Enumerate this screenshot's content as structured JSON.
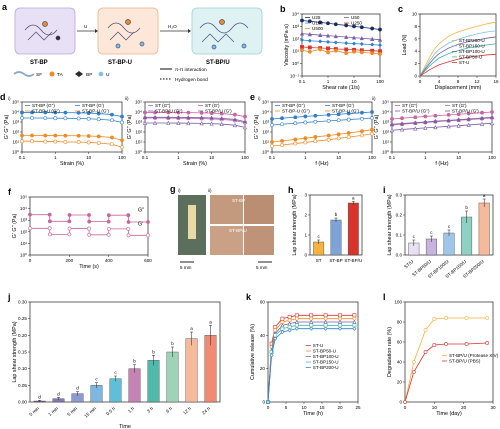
{
  "colors": {
    "purple": "#7b5ea7",
    "blue": "#2f7fd0",
    "teal": "#3fb6a8",
    "orange": "#f08a24",
    "red": "#d8342c",
    "navy": "#1b2a6b",
    "pink": "#c9669c",
    "gold": "#f4b33f",
    "peach": "#f7b99b",
    "skyblue": "#7ec0e8"
  },
  "panel_a": {
    "label": "a",
    "boxes": [
      "ST-BP",
      "ST-BP-U",
      "ST-BP/U"
    ],
    "arrow1": "U",
    "arrow2": "H₂O",
    "legend": [
      "SF",
      "TA",
      "BP",
      "U",
      "π-π interaction",
      "Hydrogen bond"
    ]
  },
  "panel_g": {
    "label": "g",
    "sub_i": "i)",
    "sub_ii": "ii)",
    "tag1": "ST-BP",
    "tag2": "ST-BP/U",
    "scale1": "5 mm",
    "scale2": "5 mm"
  },
  "chart_data": [
    {
      "id": "b",
      "type": "line",
      "xscale": "log",
      "yscale": "log",
      "xlabel": "Shear rate (1/s)",
      "ylabel": "Viscosity (mPa·s)",
      "xlim": [
        0.1,
        100
      ],
      "ylim": [
        0.1,
        10000
      ],
      "xticks": [
        "0.1",
        "1",
        "10",
        "100"
      ],
      "yticks": [
        "10⁻¹",
        "10⁰",
        "10¹",
        "10²",
        "10³",
        "10⁴"
      ],
      "x": [
        0.1,
        0.2,
        0.5,
        1,
        2,
        5,
        10,
        20,
        50,
        100
      ],
      "series": [
        {
          "name": "U25",
          "color": "#1b2a6b",
          "marker": "circle",
          "values": [
            3000,
            2600,
            2100,
            1800,
            1500,
            1200,
            1000,
            850,
            680,
            560
          ]
        },
        {
          "name": "U50",
          "color": "#7b5ea7",
          "marker": "triangle",
          "values": [
            260,
            230,
            200,
            180,
            160,
            140,
            125,
            110,
            95,
            85
          ]
        },
        {
          "name": "U100",
          "color": "#2f7fd0",
          "marker": "diamond",
          "values": [
            80,
            70,
            62,
            56,
            50,
            45,
            41,
            38,
            34,
            31
          ]
        },
        {
          "name": "U250",
          "color": "#d8342c",
          "marker": "square",
          "values": [
            22,
            20,
            18,
            17,
            15,
            14,
            13,
            12,
            11,
            10
          ]
        },
        {
          "name": "U500",
          "color": "#f08a24",
          "marker": "circle",
          "values": [
            12,
            9,
            14,
            8,
            11,
            7,
            9,
            8,
            7,
            6
          ]
        }
      ]
    },
    {
      "id": "c",
      "type": "line",
      "xlabel": "Displacement (mm)",
      "ylabel": "Load (N)",
      "xlim": [
        0,
        16
      ],
      "ylim": [
        0,
        10
      ],
      "xticks": [
        "0",
        "4",
        "8",
        "12",
        "16"
      ],
      "yticks": [
        "0",
        "2",
        "4",
        "6",
        "8",
        "10"
      ],
      "x": [
        0,
        1,
        2,
        3,
        4,
        6,
        8,
        10,
        12,
        14,
        16
      ],
      "series": [
        {
          "name": "ST-BP200-U",
          "color": "#f4b33f",
          "values": [
            0,
            1.5,
            3,
            4.3,
            5.2,
            6.4,
            7.1,
            7.6,
            8.0,
            8.4,
            8.7
          ]
        },
        {
          "name": "ST-BP150-U",
          "color": "#7ec0e8",
          "values": [
            0,
            1.2,
            2.4,
            3.5,
            4.3,
            5.3,
            5.9,
            6.4,
            6.8,
            7.1,
            7.3
          ]
        },
        {
          "name": "ST-BP100-U",
          "color": "#7b5ea7",
          "values": [
            0,
            1.0,
            2.0,
            2.9,
            3.6,
            4.5,
            5.1,
            5.5,
            5.8,
            6.1,
            6.3
          ]
        },
        {
          "name": "ST-BP50-U",
          "color": "#3fb6a8",
          "values": [
            0,
            0.8,
            1.6,
            2.3,
            2.9,
            3.6,
            4.1,
            4.5,
            4.8,
            5.0,
            5.2
          ]
        },
        {
          "name": "ST-U",
          "color": "#d8342c",
          "values": [
            0,
            0.5,
            1.0,
            1.4,
            1.8,
            2.3,
            2.7,
            3.0,
            3.2,
            3.4,
            3.5
          ]
        }
      ]
    },
    {
      "id": "di",
      "type": "line",
      "xscale": "log",
      "yscale": "log",
      "xlabel": "Strain (%)",
      "ylabel": "G' G'' (Pa)",
      "xlim": [
        0.1,
        100
      ],
      "ylim": [
        1,
        100000
      ],
      "xticks": [
        "0.1",
        "1",
        "10",
        "100"
      ],
      "yticks": [
        "10⁰",
        "10¹",
        "10²",
        "10³",
        "10⁴",
        "10⁵"
      ],
      "x": [
        0.1,
        0.2,
        0.5,
        1,
        2,
        5,
        10,
        20,
        50,
        100
      ],
      "series": [
        {
          "name": "ST-BP (G'')",
          "color": "#2f7fd0",
          "marker": "circle",
          "values": [
            9000,
            9000,
            8900,
            8800,
            8600,
            8300,
            7800,
            7000,
            5500,
            3500
          ]
        },
        {
          "name": "ST-BP (G')",
          "color": "#2f7fd0",
          "marker": "open-circle",
          "values": [
            2500,
            2500,
            2450,
            2400,
            2350,
            2250,
            2100,
            1900,
            1500,
            900
          ]
        },
        {
          "name": "ST-BP-U (G'')",
          "color": "#f08a24",
          "marker": "circle",
          "values": [
            45,
            45,
            44,
            44,
            43,
            42,
            40,
            36,
            28,
            15
          ]
        },
        {
          "name": "ST-BP-U (G')",
          "color": "#f08a24",
          "marker": "open-circle",
          "values": [
            12,
            12,
            11,
            11,
            10,
            10,
            9,
            8,
            6,
            3
          ]
        }
      ]
    },
    {
      "id": "dii",
      "type": "line",
      "xscale": "log",
      "yscale": "log",
      "xlabel": "Strain (%)",
      "ylabel": "G' G'' (Pa)",
      "xlim": [
        0.1,
        100
      ],
      "ylim": [
        1,
        100000
      ],
      "xticks": [
        "0.1",
        "1",
        "10",
        "100"
      ],
      "yticks": [
        "10⁰",
        "10¹",
        "10²",
        "10³",
        "10⁴",
        "10⁵"
      ],
      "x": [
        0.1,
        0.2,
        0.5,
        1,
        2,
        5,
        10,
        20,
        50,
        100
      ],
      "series": [
        {
          "name": "ST (G'')",
          "color": "#c9669c",
          "marker": "circle",
          "values": [
            9000,
            9000,
            8900,
            8800,
            8600,
            8200,
            7700,
            6900,
            5400,
            3400
          ]
        },
        {
          "name": "ST (G')",
          "color": "#c9669c",
          "marker": "open-circle",
          "values": [
            2500,
            2500,
            2450,
            2400,
            2300,
            2200,
            2050,
            1800,
            1400,
            850
          ]
        },
        {
          "name": "ST-BP/U (G'')",
          "color": "#7b5ea7",
          "marker": "triangle",
          "values": [
            3000,
            3000,
            2950,
            2900,
            2850,
            2750,
            2600,
            2300,
            1800,
            1100
          ]
        },
        {
          "name": "ST-BP/U (G')",
          "color": "#7b5ea7",
          "marker": "open-triangle",
          "values": [
            800,
            800,
            790,
            780,
            760,
            730,
            690,
            620,
            480,
            290
          ]
        }
      ]
    },
    {
      "id": "ei",
      "type": "line",
      "xscale": "log",
      "yscale": "log",
      "xlabel": "f (Hz)",
      "ylabel": "G' G'' (Pa)",
      "xlim": [
        0.1,
        100
      ],
      "ylim": [
        1,
        100000
      ],
      "xticks": [
        "0.1",
        "1",
        "10",
        "100"
      ],
      "yticks": [
        "10⁰",
        "10¹",
        "10²",
        "10³",
        "10⁴",
        "10⁵"
      ],
      "x": [
        0.1,
        0.2,
        0.5,
        1,
        2,
        5,
        10,
        20,
        50,
        100
      ],
      "series": [
        {
          "name": "ST-BP (G'')",
          "color": "#2f7fd0",
          "marker": "circle",
          "values": [
            2000,
            2400,
            3000,
            3600,
            4200,
            5200,
            6000,
            7000,
            8500,
            10000
          ]
        },
        {
          "name": "ST-BP (G')",
          "color": "#2f7fd0",
          "marker": "open-circle",
          "values": [
            500,
            600,
            750,
            900,
            1050,
            1300,
            1500,
            1750,
            2100,
            2500
          ]
        },
        {
          "name": "ST-BP-U (G'')",
          "color": "#f08a24",
          "marker": "circle",
          "values": [
            10,
            13,
            18,
            24,
            32,
            45,
            60,
            80,
            120,
            170
          ]
        },
        {
          "name": "ST-BP-U (G')",
          "color": "#f08a24",
          "marker": "open-circle",
          "values": [
            4,
            5,
            7,
            9,
            12,
            17,
            23,
            31,
            46,
            65
          ]
        }
      ]
    },
    {
      "id": "eii",
      "type": "line",
      "xscale": "log",
      "yscale": "log",
      "xlabel": "f (Hz)",
      "ylabel": "G' G'' (Pa)",
      "xlim": [
        0.1,
        100
      ],
      "ylim": [
        1,
        100000
      ],
      "xticks": [
        "0.1",
        "1",
        "10",
        "100"
      ],
      "yticks": [
        "10⁰",
        "10¹",
        "10²",
        "10³",
        "10⁴",
        "10⁵"
      ],
      "x": [
        0.1,
        0.2,
        0.5,
        1,
        2,
        5,
        10,
        20,
        50,
        100
      ],
      "series": [
        {
          "name": "ST (G'')",
          "color": "#c9669c",
          "marker": "circle",
          "values": [
            2000,
            2400,
            3000,
            3600,
            4200,
            5200,
            6000,
            7000,
            8500,
            10000
          ]
        },
        {
          "name": "ST (G')",
          "color": "#c9669c",
          "marker": "open-circle",
          "values": [
            500,
            600,
            750,
            900,
            1050,
            1300,
            1500,
            1750,
            2100,
            2500
          ]
        },
        {
          "name": "ST-BP/U (G'')",
          "color": "#7b5ea7",
          "marker": "triangle",
          "values": [
            600,
            700,
            850,
            1000,
            1200,
            1450,
            1700,
            2000,
            2500,
            3000
          ]
        },
        {
          "name": "ST-BP/U (G')",
          "color": "#7b5ea7",
          "marker": "open-triangle",
          "values": [
            150,
            180,
            220,
            260,
            300,
            370,
            430,
            510,
            640,
            760
          ]
        }
      ]
    },
    {
      "id": "f",
      "type": "line",
      "yscale": "log",
      "xlabel": "Time (s)",
      "ylabel": "G' G'' (Pa)",
      "xlim": [
        0,
        600
      ],
      "ylim": [
        1,
        100000
      ],
      "xticks": [
        "0",
        "200",
        "400",
        "600"
      ],
      "yticks": [
        "10⁰",
        "10¹",
        "10²",
        "10³",
        "10⁴",
        "10⁵"
      ],
      "annotations": [
        "G''",
        "G'"
      ],
      "x": [
        0,
        100,
        101,
        200,
        201,
        300,
        301,
        400,
        401,
        500,
        501,
        600
      ],
      "series": [
        {
          "name": "G''",
          "color": "#c9669c",
          "marker": "circle",
          "values": [
            3000,
            3000,
            800,
            800,
            2800,
            2800,
            750,
            750,
            2700,
            2700,
            700,
            700
          ]
        },
        {
          "name": "G'",
          "color": "#c9669c",
          "marker": "open-circle",
          "values": [
            200,
            200,
            60,
            60,
            190,
            190,
            55,
            55,
            180,
            180,
            50,
            50
          ]
        }
      ]
    },
    {
      "id": "h",
      "type": "bar",
      "ylabel": "Lap shear strength (MPa)",
      "ylim": [
        0,
        3
      ],
      "yticks": [
        "0",
        "1",
        "2",
        "3"
      ],
      "categories": [
        "ST",
        "ST-BP",
        "ST-BP/U"
      ],
      "values": [
        0.65,
        1.75,
        2.6
      ],
      "errors": [
        0.1,
        0.1,
        0.08
      ],
      "sig": [
        "c",
        "b",
        "a"
      ],
      "colors": [
        "#f4b33f",
        "#7ea3d8",
        "#d8342c"
      ]
    },
    {
      "id": "i",
      "type": "bar",
      "ylabel": "Lap shear strength (MPa)",
      "ylim": [
        0,
        0.3
      ],
      "yticks": [
        "0.0",
        "0.1",
        "0.2",
        "0.3"
      ],
      "categories": [
        "ST/U",
        "ST-BP50/U",
        "ST-BP100/U",
        "ST-BP150/U",
        "ST-BP200/U"
      ],
      "values": [
        0.06,
        0.08,
        0.11,
        0.19,
        0.26
      ],
      "errors": [
        0.015,
        0.015,
        0.015,
        0.03,
        0.02
      ],
      "sig": [
        "c",
        "c",
        "c",
        "b",
        "a"
      ],
      "colors": [
        "#e9e0f2",
        "#c8b3e0",
        "#9ec6e8",
        "#8fd0c5",
        "#f7b99b"
      ]
    },
    {
      "id": "j",
      "type": "bar",
      "xlabel": "Time",
      "ylabel": "Lap shear strength (MPa)",
      "ylim": [
        0,
        0.3
      ],
      "yticks": [
        "0.00",
        "0.05",
        "0.10",
        "0.15",
        "0.20",
        "0.25",
        "0.30"
      ],
      "categories": [
        "0 min",
        "1 min",
        "5 min",
        "15 min",
        "0.5 h",
        "1 h",
        "3 h",
        "6 h",
        "12 h",
        "24 h"
      ],
      "values": [
        0.003,
        0.01,
        0.025,
        0.05,
        0.07,
        0.1,
        0.125,
        0.15,
        0.19,
        0.2
      ],
      "errors": [
        0.002,
        0.004,
        0.006,
        0.008,
        0.008,
        0.012,
        0.015,
        0.015,
        0.02,
        0.03
      ],
      "sig": [
        "d",
        "d",
        "d",
        "c",
        "c",
        "b",
        "b",
        "b",
        "a",
        "a"
      ],
      "colors": [
        "#7b5ea7",
        "#8a76b8",
        "#8d9bd2",
        "#7eb6e2",
        "#5fbfd8",
        "#c583b3",
        "#4fb9aa",
        "#9fd3b7",
        "#f7b99b",
        "#f08a72"
      ]
    },
    {
      "id": "k",
      "type": "line",
      "xlabel": "Time (h)",
      "ylabel": "Cumulative release (%)",
      "xlim": [
        0,
        25
      ],
      "ylim": [
        0,
        60
      ],
      "xticks": [
        "0",
        "5",
        "10",
        "15",
        "20",
        "25"
      ],
      "yticks": [
        "0",
        "20",
        "40",
        "60"
      ],
      "x": [
        0,
        1,
        2,
        4,
        6,
        8,
        12,
        16,
        20,
        24
      ],
      "series": [
        {
          "name": "ST-U",
          "color": "#d8342c",
          "marker": "open-square",
          "values": [
            0,
            35,
            45,
            50,
            51,
            52,
            52,
            52,
            52,
            52
          ]
        },
        {
          "name": "ST-BP50-U",
          "color": "#f08a24",
          "marker": "open-circle",
          "values": [
            0,
            33,
            43,
            48,
            49,
            50,
            50,
            50,
            50,
            50
          ]
        },
        {
          "name": "ST-BP100-U",
          "color": "#7b5ea7",
          "marker": "open-triangle",
          "values": [
            0,
            31,
            41,
            46,
            47,
            48,
            48,
            48,
            48,
            48
          ]
        },
        {
          "name": "ST-BP150-U",
          "color": "#3fb6a8",
          "marker": "open-square",
          "values": [
            0,
            30,
            40,
            44,
            45,
            46,
            46,
            46,
            46,
            46
          ]
        },
        {
          "name": "ST-BP200-U",
          "color": "#2f7fd0",
          "marker": "open-diamond",
          "values": [
            0,
            28,
            38,
            42,
            43,
            44,
            44,
            44,
            44,
            44
          ]
        }
      ]
    },
    {
      "id": "l",
      "type": "line",
      "xlabel": "Time (day)",
      "ylabel": "Degradation rate (%)",
      "xlim": [
        0,
        30
      ],
      "ylim": [
        0,
        100
      ],
      "xticks": [
        "0",
        "10",
        "20",
        "30"
      ],
      "yticks": [
        "0",
        "20",
        "40",
        "60",
        "80",
        "100"
      ],
      "x": [
        0,
        3,
        7,
        10,
        14,
        21,
        28
      ],
      "series": [
        {
          "name": "ST-BP/U (Protease XIV)",
          "color": "#f4b33f",
          "marker": "open-circle",
          "values": [
            0,
            40,
            72,
            83,
            84,
            84,
            84
          ]
        },
        {
          "name": "ST-BP/U (PBS)",
          "color": "#d8342c",
          "marker": "open-circle",
          "values": [
            0,
            30,
            50,
            57,
            58,
            58,
            59
          ]
        }
      ]
    }
  ]
}
